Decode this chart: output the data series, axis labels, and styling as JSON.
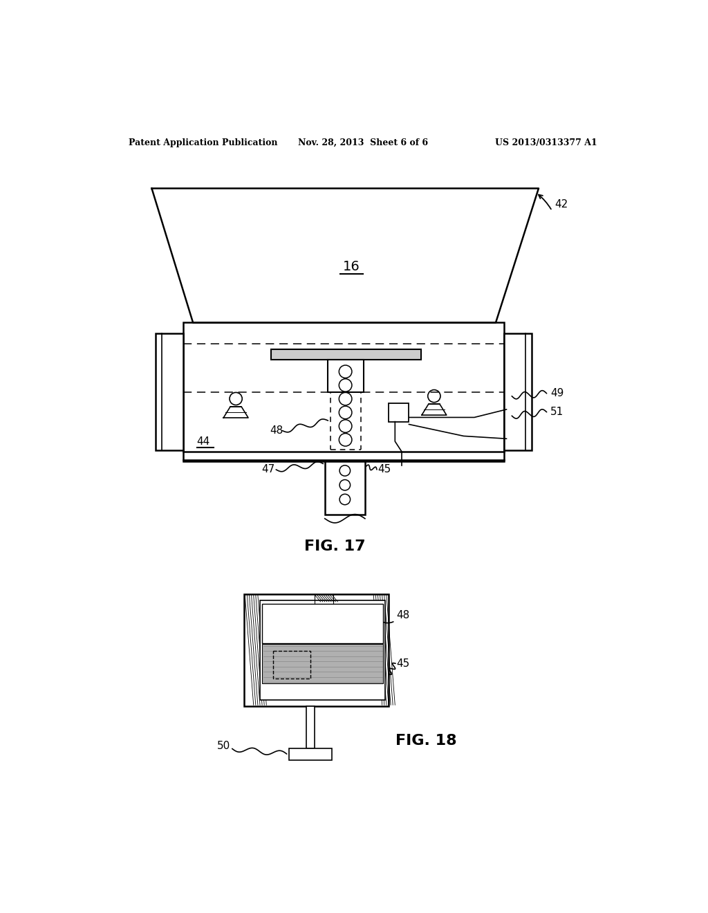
{
  "bg_color": "#ffffff",
  "header_left": "Patent Application Publication",
  "header_mid": "Nov. 28, 2013  Sheet 6 of 6",
  "header_right": "US 2013/0313377 A1",
  "fig17_label": "FIG. 17",
  "fig18_label": "FIG. 18"
}
